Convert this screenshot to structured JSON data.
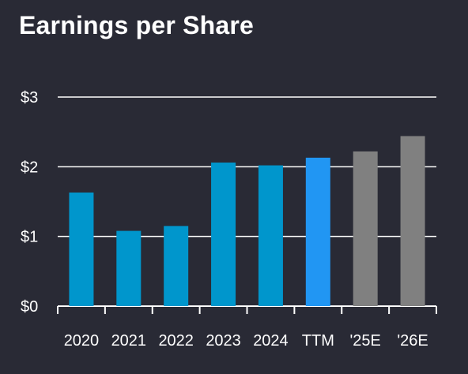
{
  "chart_data": {
    "type": "bar",
    "title": "Earnings per Share",
    "categories": [
      "2020",
      "2021",
      "2022",
      "2023",
      "2024",
      "TTM",
      "'25E",
      "'26E"
    ],
    "values": [
      1.63,
      1.08,
      1.15,
      2.06,
      2.02,
      2.13,
      2.22,
      2.44
    ],
    "bar_colors": [
      "#0096cc",
      "#0096cc",
      "#0096cc",
      "#0096cc",
      "#0096cc",
      "#2196f3",
      "#808080",
      "#808080"
    ],
    "ylim": [
      0,
      3
    ],
    "yticks": [
      0,
      1,
      2,
      3
    ],
    "ytick_labels": [
      "$0",
      "$1",
      "$2",
      "$3"
    ],
    "grid": true,
    "xlabel": "",
    "ylabel": ""
  },
  "colors": {
    "background": "#292a35",
    "text": "#ffffff",
    "grid": "#ffffff"
  }
}
